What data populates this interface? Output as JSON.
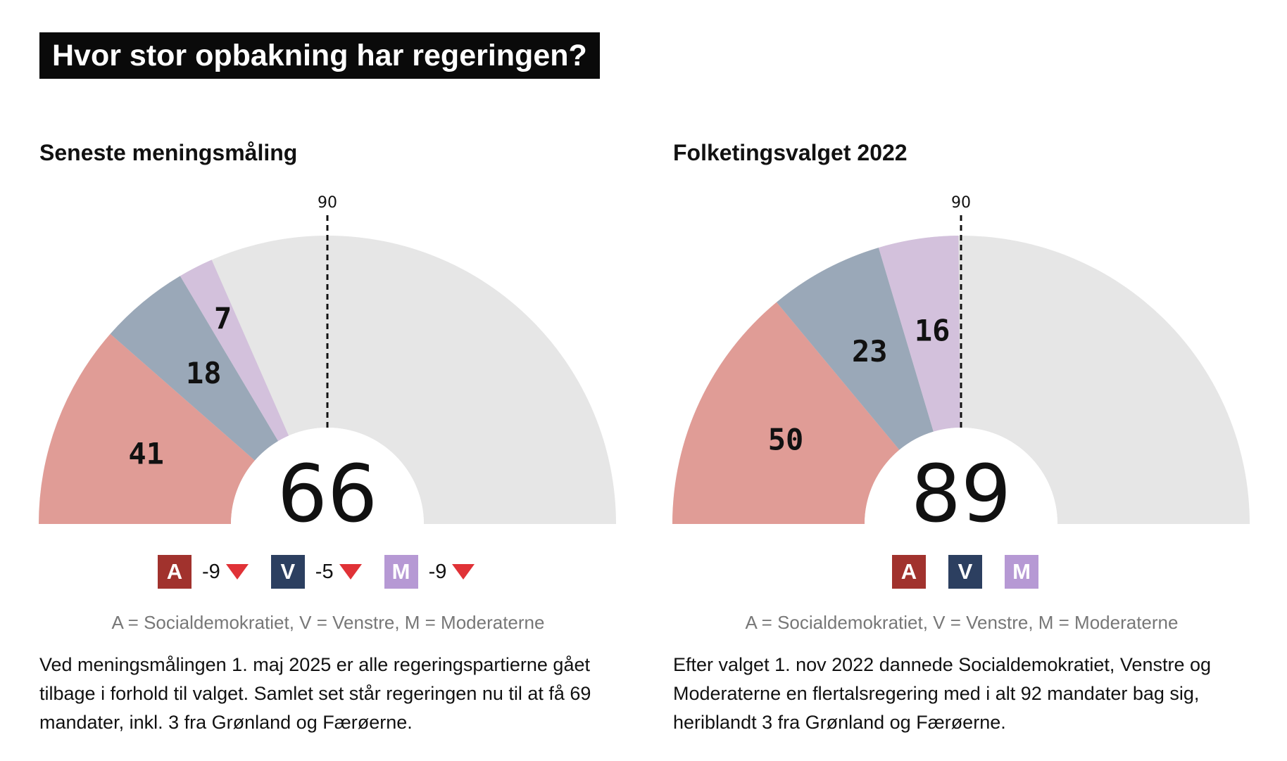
{
  "title": "Hvor stor opbakning har regeringen?",
  "chart_data": [
    {
      "type": "pie",
      "variant": "semicircle-parliament",
      "title": "Seneste meningsmåling",
      "total_seats": 179,
      "majority_line": 90,
      "threshold_label": "90",
      "center_value": "66",
      "segments": [
        {
          "party": "A",
          "value": 41,
          "label": "41",
          "color": "#e09c96"
        },
        {
          "party": "V",
          "value": 18,
          "label": "18",
          "color": "#9aa8b8"
        },
        {
          "party": "M",
          "value": 7,
          "label": "7",
          "color": "#d3c1dc"
        }
      ],
      "remainder_color": "#e6e6e6",
      "legend": [
        {
          "letter": "A",
          "badge_color": "#a1322d",
          "change": "-9",
          "direction": "down"
        },
        {
          "letter": "V",
          "badge_color": "#2c3f60",
          "change": "-5",
          "direction": "down"
        },
        {
          "letter": "M",
          "badge_color": "#b699d4",
          "change": "-9",
          "direction": "down"
        }
      ],
      "legend_note": "A = Socialdemokratiet, V = Venstre, M = Moderaterne",
      "description": "Ved meningsmålingen 1. maj 2025 er alle regeringspartierne gået tilbage i forhold til valget. Samlet set står regeringen nu til at få 69 mandater, inkl. 3 fra Grønland og Færøerne."
    },
    {
      "type": "pie",
      "variant": "semicircle-parliament",
      "title": "Folketingsvalget 2022",
      "total_seats": 179,
      "majority_line": 90,
      "threshold_label": "90",
      "center_value": "89",
      "segments": [
        {
          "party": "A",
          "value": 50,
          "label": "50",
          "color": "#e09c96"
        },
        {
          "party": "V",
          "value": 23,
          "label": "23",
          "color": "#9aa8b8"
        },
        {
          "party": "M",
          "value": 16,
          "label": "16",
          "color": "#d3c1dc"
        }
      ],
      "remainder_color": "#e6e6e6",
      "legend": [
        {
          "letter": "A",
          "badge_color": "#a1322d"
        },
        {
          "letter": "V",
          "badge_color": "#2c3f60"
        },
        {
          "letter": "M",
          "badge_color": "#b699d4"
        }
      ],
      "legend_note": "A = Socialdemokratiet, V = Venstre, M = Moderaterne",
      "description": "Efter valget 1. nov 2022 dannede Socialdemokratiet, Venstre og Moderaterne en flertalsregering med i alt 92 mandater bag sig, heriblandt 3 fra Grønland og Færøerne."
    }
  ]
}
